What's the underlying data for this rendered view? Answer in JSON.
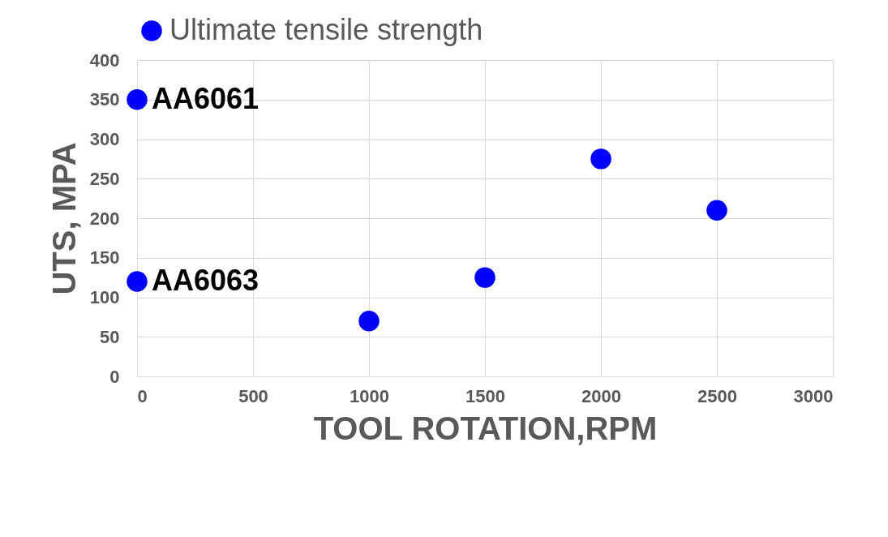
{
  "chart_data": {
    "type": "scatter",
    "xlabel": "TOOL ROTATION,RPM",
    "ylabel": "UTS, MPA",
    "x": [
      0,
      0,
      1000,
      1500,
      2000,
      2500
    ],
    "series": [
      {
        "name": "Ultimate tensile strength",
        "color": "#0000ff",
        "values": [
          350,
          120,
          70,
          125,
          275,
          210
        ]
      }
    ],
    "xlim": [
      0,
      3000
    ],
    "xticks": [
      0,
      500,
      1000,
      1500,
      2000,
      2500,
      3000
    ],
    "ylim": [
      0,
      400
    ],
    "yticks": [
      0,
      50,
      100,
      150,
      200,
      250,
      300,
      350,
      400
    ],
    "grid": true,
    "legend": "top",
    "marker": "circle",
    "annotations": [
      {
        "text": "AA6061",
        "x": 0,
        "y": 350
      },
      {
        "text": "AA6063",
        "x": 0,
        "y": 120
      }
    ]
  }
}
